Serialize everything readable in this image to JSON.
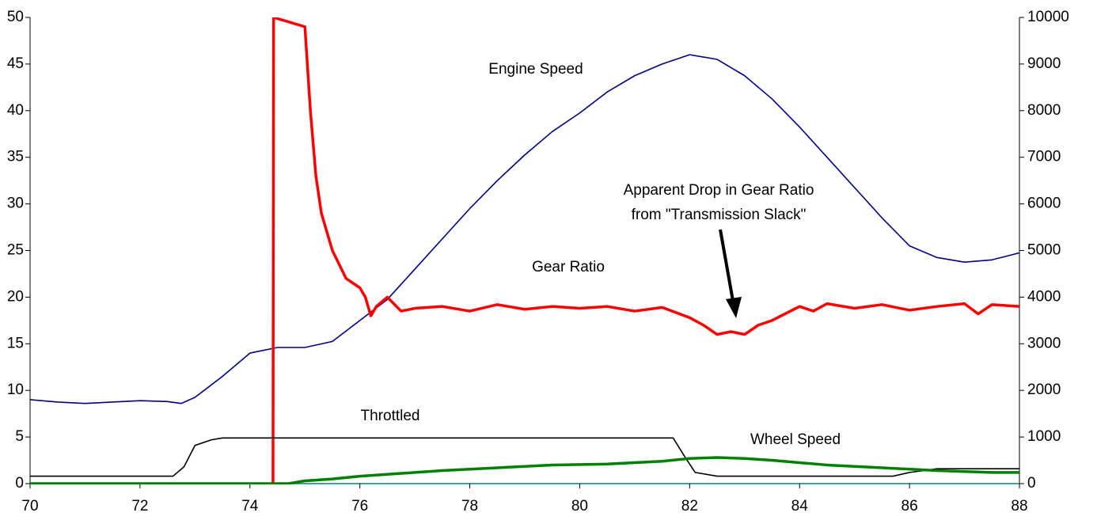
{
  "chart_data": {
    "type": "line",
    "xlim": [
      70,
      88
    ],
    "xticks": [
      70,
      72,
      74,
      76,
      78,
      80,
      82,
      84,
      86,
      88
    ],
    "ylim": [
      0,
      50
    ],
    "yticks": [
      0,
      5,
      10,
      15,
      20,
      25,
      30,
      35,
      40,
      45,
      50
    ],
    "y2lim": [
      0,
      10000
    ],
    "y2ticks": [
      0,
      1000,
      2000,
      3000,
      4000,
      5000,
      6000,
      7000,
      8000,
      9000,
      10000
    ],
    "grid": false,
    "annotation": [
      "Apparent Drop in Gear Ratio",
      "from \"Transmission Slack\""
    ],
    "series": [
      {
        "name": "Engine Speed",
        "color": "#000080",
        "axis": "y2",
        "x": [
          70,
          70.5,
          71,
          72,
          72.5,
          72.75,
          73,
          73.5,
          74,
          74.5,
          75,
          75.5,
          76,
          76.5,
          77,
          77.5,
          78,
          78.5,
          79,
          79.5,
          80,
          80.5,
          81,
          81.5,
          82,
          82.5,
          83,
          83.5,
          84,
          84.5,
          85,
          85.5,
          86,
          86.5,
          87,
          87.5,
          88
        ],
        "values": [
          1800,
          1750,
          1720,
          1780,
          1760,
          1720,
          1850,
          2300,
          2800,
          2920,
          2920,
          3050,
          3500,
          3950,
          4600,
          5250,
          5900,
          6500,
          7050,
          7550,
          7950,
          8400,
          8750,
          9000,
          9200,
          9100,
          8750,
          8250,
          7650,
          7000,
          6350,
          5700,
          5100,
          4850,
          4750,
          4800,
          4950
        ]
      },
      {
        "name": "Gear Ratio",
        "color": "#ff0000",
        "x": [
          74.42,
          74.43,
          75,
          75.1,
          75.2,
          75.3,
          75.5,
          75.75,
          76,
          76.1,
          76.2,
          76.3,
          76.5,
          76.75,
          77,
          77.5,
          78,
          78.5,
          79,
          79.5,
          80,
          80.5,
          81,
          81.5,
          82,
          82.25,
          82.5,
          82.75,
          83,
          83.25,
          83.5,
          84,
          84.25,
          84.5,
          85,
          85.5,
          86,
          86.5,
          87,
          87.25,
          87.5,
          88
        ],
        "values": [
          0,
          50,
          49,
          40,
          33,
          29,
          25,
          22,
          21,
          20,
          18,
          19,
          20,
          18.5,
          18.8,
          19,
          18.5,
          19.2,
          18.7,
          19,
          18.8,
          19,
          18.5,
          18.9,
          17.8,
          17,
          16,
          16.3,
          16,
          17,
          17.5,
          19,
          18.5,
          19.3,
          18.8,
          19.2,
          18.6,
          19,
          19.3,
          18.2,
          19.2,
          19
        ]
      },
      {
        "name": "Throttled",
        "color": "#000000",
        "x": [
          70,
          72.6,
          72.8,
          73,
          73.3,
          73.5,
          81.7,
          81.9,
          82.1,
          82.5,
          85.7,
          86,
          86.5,
          88
        ],
        "values": [
          0.8,
          0.8,
          1.8,
          4.1,
          4.7,
          4.9,
          4.9,
          3,
          1.2,
          0.8,
          0.8,
          1.2,
          1.6,
          1.6
        ]
      },
      {
        "name": "Wheel Speed",
        "color": "#008000",
        "x": [
          70,
          74.7,
          75,
          75.5,
          76,
          76.5,
          77.5,
          78.5,
          79.5,
          80.5,
          81.5,
          82,
          82.5,
          83,
          83.5,
          84.5,
          85.5,
          86.5,
          87.5,
          88
        ],
        "values": [
          0,
          0,
          0.3,
          0.5,
          0.8,
          1,
          1.4,
          1.7,
          2,
          2.1,
          2.4,
          2.7,
          2.8,
          2.7,
          2.5,
          2,
          1.7,
          1.4,
          1.2,
          1.2
        ]
      }
    ]
  }
}
